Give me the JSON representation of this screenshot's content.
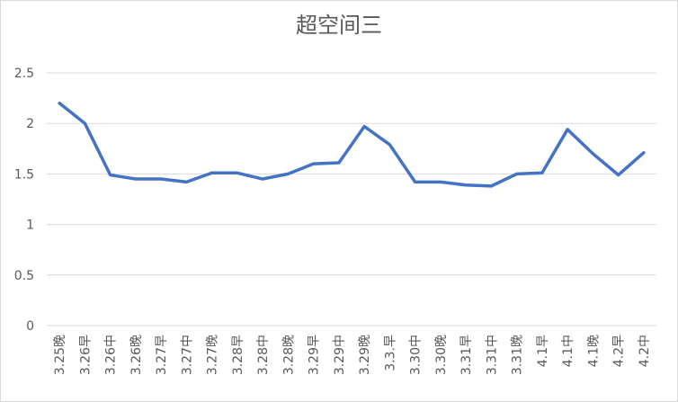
{
  "chart_data": {
    "type": "line",
    "title": "超空间三",
    "categories": [
      "3.25晚",
      "3.26早",
      "3.26中",
      "3.26晚",
      "3.27早",
      "3.27中",
      "3.27晚",
      "3.28早",
      "3.28中",
      "3.28晚",
      "3.29早",
      "3.29中",
      "3.29晚",
      "3.3.早",
      "3.30中",
      "3.30晚",
      "3.31早",
      "3.31中",
      "3.31晚",
      "4.1早",
      "4.1中",
      "4.1晚",
      "4.2早",
      "4.2中"
    ],
    "series": [
      {
        "name": "超空间三",
        "color": "#4472c4",
        "values": [
          2.2,
          2.0,
          1.49,
          1.45,
          1.45,
          1.42,
          1.51,
          1.51,
          1.45,
          1.5,
          1.6,
          1.61,
          1.97,
          1.79,
          1.42,
          1.42,
          1.39,
          1.38,
          1.5,
          1.51,
          1.94,
          1.7,
          1.49,
          1.71
        ]
      }
    ],
    "ylim": [
      0,
      2.5
    ],
    "yticks": [
      0,
      0.5,
      1,
      1.5,
      2,
      2.5
    ],
    "grid": true
  }
}
